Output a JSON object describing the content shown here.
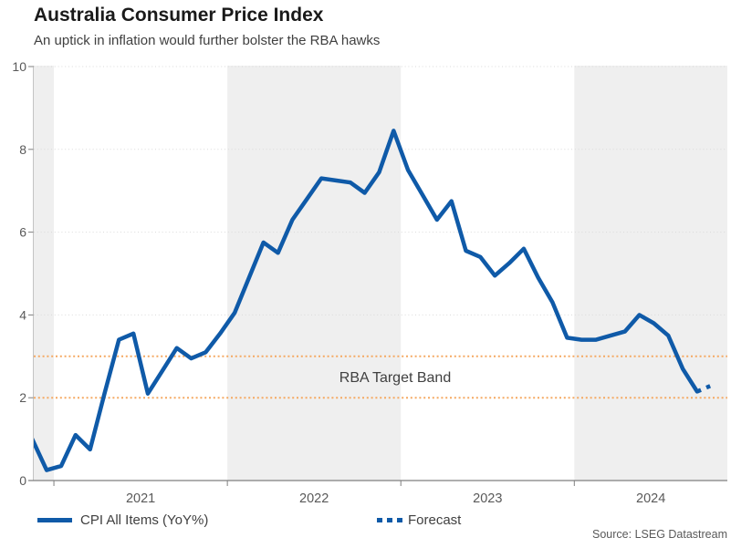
{
  "header": {
    "title": "Australia Consumer Price Index",
    "subtitle": "An uptick in inflation would further bolster the RBA hawks"
  },
  "legend": {
    "series_label": "CPI All Items (YoY%)",
    "forecast_label": "Forecast"
  },
  "source_note": "Source: LSEG Datastream",
  "colors": {
    "line": "#0F5AA8",
    "target_band": "#F5A962",
    "year_shade": "#EFEFEF",
    "grid": "#DADADA",
    "axis": "#7F7F7F",
    "axis_light": "#C4C4C4",
    "text_axis": "#595959",
    "text_annotation": "#404040"
  },
  "chart_data": {
    "type": "line",
    "title": "Australia Consumer Price Index",
    "subtitle": "An uptick in inflation would further bolster the RBA hawks",
    "xlabel": "",
    "ylabel": "",
    "ylim": [
      0,
      10
    ],
    "yticks": [
      0,
      2,
      4,
      6,
      8,
      10
    ],
    "xtick_labels": [
      "2021",
      "2022",
      "2023",
      "2024"
    ],
    "grid": true,
    "legend_position": "bottom",
    "shaded_years": [
      2020,
      2022,
      2024
    ],
    "target_band": {
      "low": 2,
      "high": 3,
      "label": "RBA Target Band"
    },
    "series": [
      {
        "name": "CPI All Items (YoY%)",
        "style": "solid",
        "x": [
          "2020-11",
          "2020-12",
          "2021-01",
          "2021-02",
          "2021-03",
          "2021-04",
          "2021-05",
          "2021-06",
          "2021-07",
          "2021-08",
          "2021-09",
          "2021-10",
          "2021-11",
          "2021-12",
          "2022-01",
          "2022-02",
          "2022-03",
          "2022-04",
          "2022-05",
          "2022-06",
          "2022-07",
          "2022-08",
          "2022-09",
          "2022-10",
          "2022-11",
          "2022-12",
          "2023-01",
          "2023-02",
          "2023-03",
          "2023-04",
          "2023-05",
          "2023-06",
          "2023-07",
          "2023-08",
          "2023-09",
          "2023-10",
          "2023-11",
          "2023-12",
          "2024-01",
          "2024-02",
          "2024-03",
          "2024-04",
          "2024-05",
          "2024-06",
          "2024-07",
          "2024-08",
          "2024-09"
        ],
        "values": [
          1.0,
          0.25,
          0.35,
          1.1,
          0.75,
          2.1,
          3.4,
          3.55,
          2.1,
          2.65,
          3.2,
          2.95,
          3.1,
          3.55,
          4.05,
          4.9,
          5.75,
          5.5,
          6.3,
          6.8,
          7.3,
          7.25,
          7.2,
          6.95,
          7.45,
          8.45,
          7.5,
          6.9,
          6.3,
          6.75,
          5.55,
          5.4,
          4.95,
          5.25,
          5.6,
          4.9,
          4.3,
          3.45,
          3.4,
          3.4,
          3.5,
          3.6,
          4.0,
          3.8,
          3.5,
          2.7,
          2.15
        ]
      },
      {
        "name": "Forecast",
        "style": "dotted",
        "x": [
          "2024-09",
          "2024-10"
        ],
        "values": [
          2.15,
          2.3
        ]
      }
    ]
  }
}
